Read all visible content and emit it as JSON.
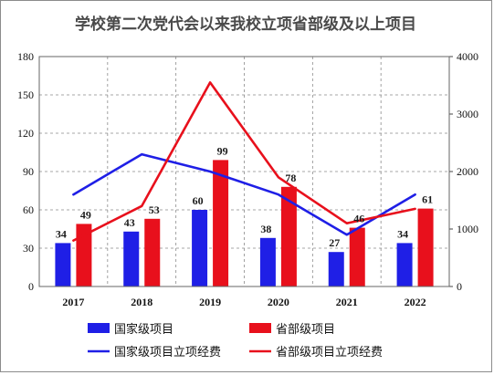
{
  "chart_data": {
    "type": "bar",
    "title": "学校第二次党代会以来我校立项省部级及以上项目",
    "categories": [
      "2017",
      "2018",
      "2019",
      "2020",
      "2021",
      "2022"
    ],
    "series": [
      {
        "name": "国家级项目",
        "kind": "bar",
        "axis": "left",
        "color": "#1f1fe6",
        "values": [
          34,
          43,
          60,
          38,
          27,
          34
        ]
      },
      {
        "name": "省部级项目",
        "kind": "bar",
        "axis": "left",
        "color": "#e8101c",
        "values": [
          49,
          53,
          99,
          78,
          46,
          61
        ]
      },
      {
        "name": "国家级项目立项经费",
        "kind": "line",
        "axis": "right",
        "color": "#1f1fe6",
        "values": [
          1600,
          2300,
          2000,
          1600,
          900,
          1600
        ]
      },
      {
        "name": "省部级项目立项经费",
        "kind": "line",
        "axis": "right",
        "color": "#e8101c",
        "values": [
          800,
          1400,
          3550,
          1900,
          1100,
          1350
        ]
      }
    ],
    "ylim_left": [
      0,
      180
    ],
    "yticks_left": [
      "0",
      "30",
      "60",
      "90",
      "120",
      "150",
      "180"
    ],
    "ylim_right": [
      0,
      4000
    ],
    "yticks_right": [
      "0",
      "1000",
      "2000",
      "3000",
      "4000"
    ],
    "grid": "dashed",
    "legend_position": "bottom"
  }
}
